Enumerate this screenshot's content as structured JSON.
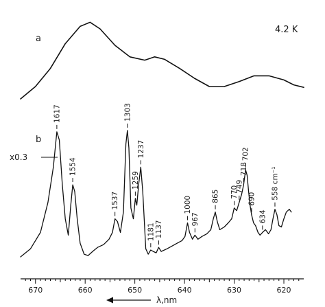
{
  "chart_data": {
    "type": "line",
    "xlabel": "λ,nm",
    "x_reversed": true,
    "xlim": [
      673,
      616
    ],
    "xticks": [
      670,
      660,
      650,
      640,
      630,
      620
    ],
    "temperature_label": "4.2 K",
    "panels": [
      {
        "label": "a"
      },
      {
        "label": "b",
        "scale_note": "x0.3"
      }
    ],
    "series": [
      {
        "panel": "a",
        "points": [
          [
            673,
            0.05
          ],
          [
            670,
            0.2
          ],
          [
            667,
            0.42
          ],
          [
            664,
            0.72
          ],
          [
            661,
            0.93
          ],
          [
            659,
            0.98
          ],
          [
            657,
            0.9
          ],
          [
            654,
            0.7
          ],
          [
            651,
            0.56
          ],
          [
            648,
            0.52
          ],
          [
            646,
            0.56
          ],
          [
            644,
            0.53
          ],
          [
            641,
            0.42
          ],
          [
            638,
            0.3
          ],
          [
            635,
            0.2
          ],
          [
            632,
            0.2
          ],
          [
            629,
            0.26
          ],
          [
            626,
            0.33
          ],
          [
            623,
            0.33
          ],
          [
            620,
            0.28
          ],
          [
            618,
            0.22
          ],
          [
            616,
            0.19
          ]
        ]
      },
      {
        "panel": "b",
        "points": [
          [
            673,
            0.02
          ],
          [
            671,
            0.08
          ],
          [
            669,
            0.2
          ],
          [
            667.5,
            0.42
          ],
          [
            666.4,
            0.68
          ],
          [
            665.7,
            0.94
          ],
          [
            665.2,
            0.88
          ],
          [
            664.6,
            0.55
          ],
          [
            664,
            0.3
          ],
          [
            663.4,
            0.18
          ],
          [
            662.9,
            0.4
          ],
          [
            662.5,
            0.55
          ],
          [
            662.1,
            0.5
          ],
          [
            661.6,
            0.3
          ],
          [
            661,
            0.12
          ],
          [
            660.2,
            0.04
          ],
          [
            659.4,
            0.03
          ],
          [
            658.5,
            0.06
          ],
          [
            657.5,
            0.09
          ],
          [
            656.3,
            0.11
          ],
          [
            655.2,
            0.15
          ],
          [
            654.5,
            0.2
          ],
          [
            654,
            0.3
          ],
          [
            653.5,
            0.28
          ],
          [
            652.9,
            0.2
          ],
          [
            652.3,
            0.35
          ],
          [
            651.8,
            0.85
          ],
          [
            651.5,
            0.95
          ],
          [
            651.2,
            0.82
          ],
          [
            650.8,
            0.38
          ],
          [
            650.3,
            0.3
          ],
          [
            649.9,
            0.45
          ],
          [
            649.6,
            0.4
          ],
          [
            649.2,
            0.56
          ],
          [
            648.8,
            0.68
          ],
          [
            648.4,
            0.5
          ],
          [
            647.8,
            0.08
          ],
          [
            647.3,
            0.04
          ],
          [
            646.8,
            0.07
          ],
          [
            646.3,
            0.06
          ],
          [
            645.7,
            0.05
          ],
          [
            645.2,
            0.09
          ],
          [
            644.7,
            0.06
          ],
          [
            643.5,
            0.08
          ],
          [
            642.5,
            0.1
          ],
          [
            641.5,
            0.12
          ],
          [
            640.5,
            0.14
          ],
          [
            639.9,
            0.17
          ],
          [
            639.4,
            0.27
          ],
          [
            639,
            0.2
          ],
          [
            638.4,
            0.15
          ],
          [
            637.9,
            0.18
          ],
          [
            637.3,
            0.15
          ],
          [
            636.5,
            0.17
          ],
          [
            635.5,
            0.19
          ],
          [
            634.7,
            0.22
          ],
          [
            634.2,
            0.3
          ],
          [
            633.8,
            0.35
          ],
          [
            633.4,
            0.28
          ],
          [
            632.9,
            0.22
          ],
          [
            632,
            0.24
          ],
          [
            631.2,
            0.27
          ],
          [
            630.5,
            0.3
          ],
          [
            630,
            0.38
          ],
          [
            629.5,
            0.36
          ],
          [
            629,
            0.42
          ],
          [
            628.5,
            0.48
          ],
          [
            628.1,
            0.55
          ],
          [
            627.7,
            0.66
          ],
          [
            627.4,
            0.62
          ],
          [
            627.1,
            0.5
          ],
          [
            626.8,
            0.4
          ],
          [
            626.5,
            0.33
          ],
          [
            626.1,
            0.27
          ],
          [
            625.7,
            0.25
          ],
          [
            625.2,
            0.2
          ],
          [
            624.8,
            0.18
          ],
          [
            624.3,
            0.2
          ],
          [
            623.7,
            0.22
          ],
          [
            623.1,
            0.19
          ],
          [
            622.6,
            0.22
          ],
          [
            622.2,
            0.3
          ],
          [
            621.8,
            0.37
          ],
          [
            621.4,
            0.33
          ],
          [
            621,
            0.25
          ],
          [
            620.5,
            0.24
          ],
          [
            620,
            0.3
          ],
          [
            619.5,
            0.35
          ],
          [
            618.9,
            0.37
          ],
          [
            618.5,
            0.35
          ]
        ]
      }
    ],
    "peak_labels": [
      {
        "text": "1617",
        "x": 665.7
      },
      {
        "text": "1554",
        "x": 662.5
      },
      {
        "text": "1537",
        "x": 654.0
      },
      {
        "text": "1303",
        "x": 651.5
      },
      {
        "text": "1259",
        "x": 649.9
      },
      {
        "text": "1237",
        "x": 648.8
      },
      {
        "text": "1181",
        "x": 646.8
      },
      {
        "text": "1137",
        "x": 645.2
      },
      {
        "text": "1000",
        "x": 639.4
      },
      {
        "text": "967",
        "x": 637.9
      },
      {
        "text": "865",
        "x": 633.8
      },
      {
        "text": "770",
        "x": 630.0
      },
      {
        "text": "749",
        "x": 629.0
      },
      {
        "text": "718",
        "x": 628.1
      },
      {
        "text": "702",
        "x": 627.7
      },
      {
        "text": "690",
        "x": 626.5
      },
      {
        "text": "634",
        "x": 624.3
      },
      {
        "text": "558 cm⁻¹",
        "x": 621.8
      }
    ]
  }
}
